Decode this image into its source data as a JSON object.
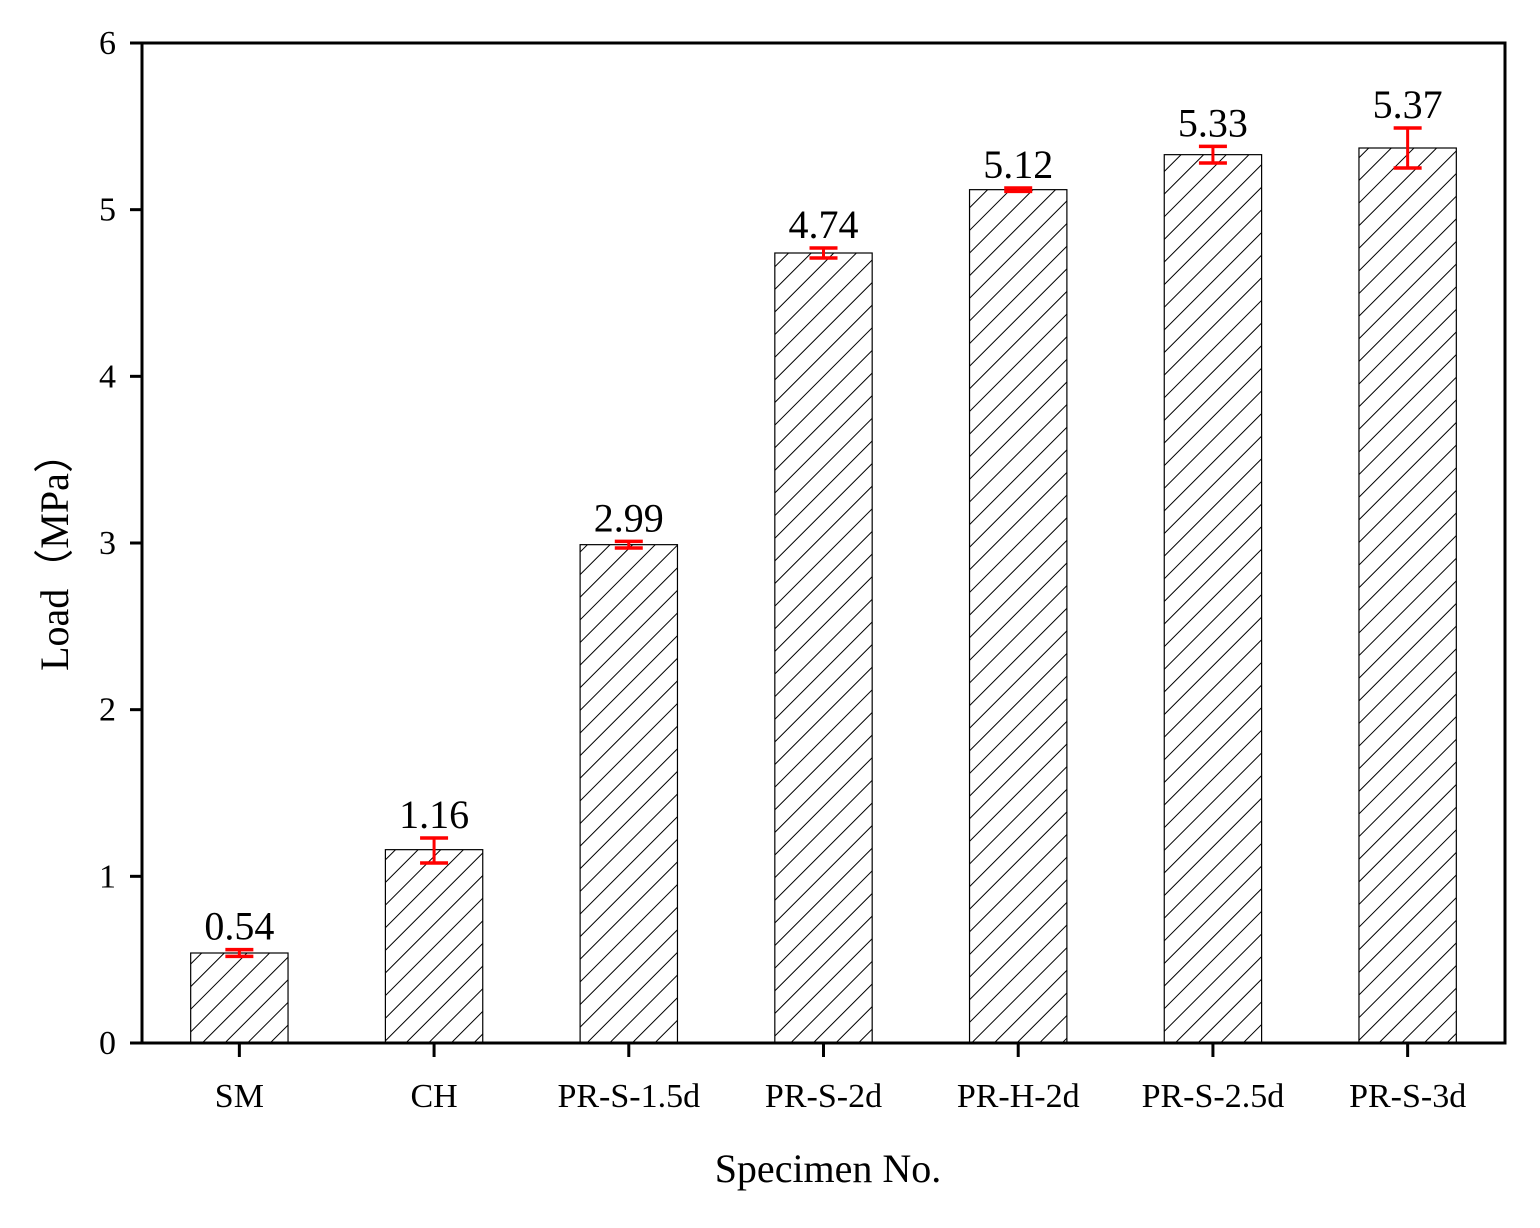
{
  "chart_data": {
    "type": "bar",
    "title": "",
    "xlabel": "Specimen No.",
    "ylabel": "Load（MPa）",
    "categories": [
      "SM",
      "CH",
      "PR-S-1.5d",
      "PR-S-2d",
      "PR-H-2d",
      "PR-S-2.5d",
      "PR-S-3d"
    ],
    "values": [
      0.54,
      1.16,
      2.99,
      4.74,
      5.12,
      5.33,
      5.37
    ],
    "value_labels": [
      "0.54",
      "1.16",
      "2.99",
      "4.74",
      "5.12",
      "5.33",
      "5.37"
    ],
    "error_low": [
      0.52,
      1.08,
      2.97,
      4.71,
      5.11,
      5.28,
      5.25
    ],
    "error_high": [
      0.56,
      1.23,
      3.01,
      4.77,
      5.13,
      5.38,
      5.49
    ],
    "ylim": [
      0,
      6
    ],
    "yticks": [
      "0",
      "1",
      "2",
      "3",
      "4",
      "5",
      "6"
    ],
    "grid": false,
    "legend": "none",
    "bar_fill": "hatched",
    "colors": {
      "bar_edge": "#000000",
      "hatch": "#000000",
      "error_bar": "#ff0000",
      "axis": "#000000"
    }
  }
}
